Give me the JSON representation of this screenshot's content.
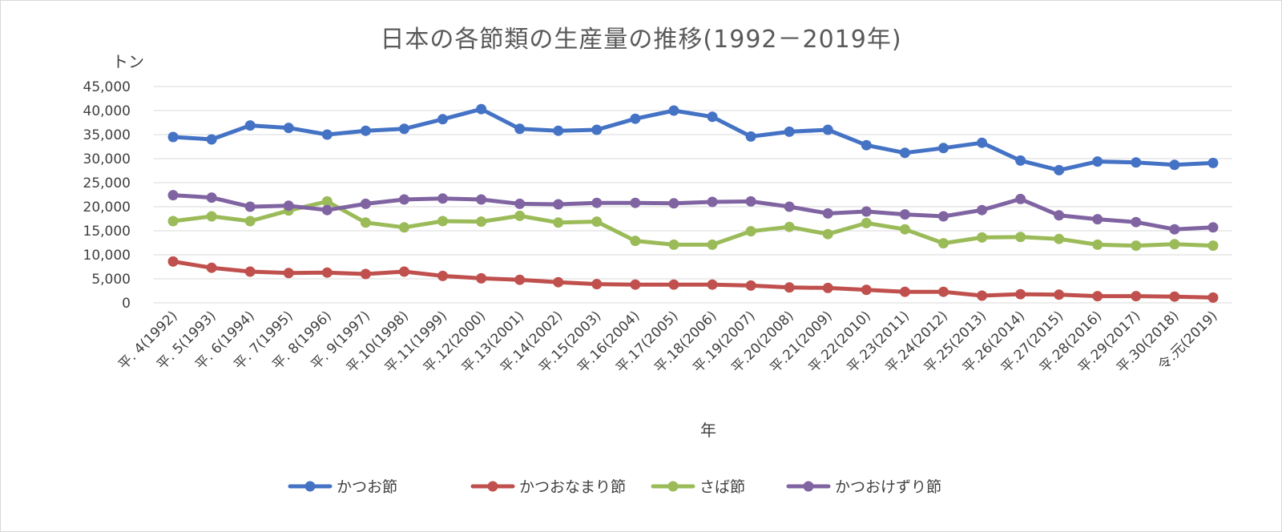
{
  "chart_data": {
    "type": "line",
    "title": "日本の各節類の生産量の推移(1992－2019年)",
    "ylabel": "トン",
    "xlabel": "年",
    "ylim": [
      0,
      45000
    ],
    "yticks": [
      0,
      5000,
      10000,
      15000,
      20000,
      25000,
      30000,
      35000,
      40000,
      45000
    ],
    "ytick_labels": [
      "0",
      "5,000",
      "10,000",
      "15,000",
      "20,000",
      "25,000",
      "30,000",
      "35,000",
      "40,000",
      "45,000"
    ],
    "grid": true,
    "legend_position": "bottom",
    "categories": [
      "平. 4(1992)",
      "平. 5(1993)",
      "平. 6(1994)",
      "平. 7(1995)",
      "平. 8(1996)",
      "平. 9(1997)",
      "平.10(1998)",
      "平.11(1999)",
      "平.12(2000)",
      "平.13(2001)",
      "平.14(2002)",
      "平.15(2003)",
      "平.16(2004)",
      "平.17(2005)",
      "平.18(2006)",
      "平.19(2007)",
      "平.20(2008)",
      "平.21(2009)",
      "平.22(2010)",
      "平.23(2011)",
      "平.24(2012)",
      "平.25(2013)",
      "平.26(2014)",
      "平.27(2015)",
      "平.28(2016)",
      "平.29(2017)",
      "平.30(2018)",
      "令.元(2019)"
    ],
    "series": [
      {
        "name": "かつお節",
        "color": "#4472c4",
        "values": [
          34500,
          34000,
          36900,
          36400,
          35000,
          35800,
          36200,
          38200,
          40300,
          36200,
          35800,
          36000,
          38300,
          40000,
          38700,
          34600,
          35600,
          36000,
          32800,
          31200,
          32200,
          33300,
          29600,
          27600,
          29400,
          29200,
          28700,
          29100
        ]
      },
      {
        "name": "かつおなまり節",
        "color": "#c0504d",
        "values": [
          8600,
          7300,
          6500,
          6200,
          6300,
          6000,
          6500,
          5600,
          5100,
          4800,
          4300,
          3900,
          3800,
          3800,
          3800,
          3600,
          3200,
          3100,
          2700,
          2300,
          2300,
          1500,
          1800,
          1700,
          1400,
          1400,
          1300,
          1100
        ]
      },
      {
        "name": "さば節",
        "color": "#9bbb59",
        "values": [
          17000,
          18000,
          17000,
          19200,
          21100,
          16700,
          15700,
          17000,
          16900,
          18100,
          16700,
          16900,
          12900,
          12100,
          12100,
          14900,
          15800,
          14300,
          16600,
          15300,
          12400,
          13600,
          13700,
          13300,
          12100,
          11900,
          12200,
          11900
        ]
      },
      {
        "name": "かつおけずり節",
        "color": "#8064a2",
        "values": [
          22400,
          21900,
          20000,
          20200,
          19300,
          20600,
          21500,
          21700,
          21500,
          20600,
          20500,
          20800,
          20800,
          20700,
          21000,
          21100,
          20000,
          18600,
          19000,
          18400,
          18000,
          19300,
          21600,
          18200,
          17400,
          16800,
          15300,
          15700
        ]
      }
    ]
  }
}
